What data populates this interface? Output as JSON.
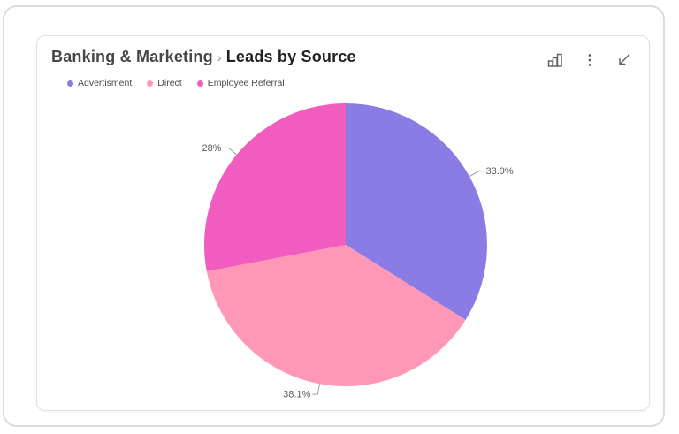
{
  "header": {
    "breadcrumb_primary": "Banking & Marketing",
    "breadcrumb_separator": "›",
    "breadcrumb_secondary": "Leads by Source"
  },
  "toolbar": {
    "icons": [
      "bar-chart-icon",
      "kebab-menu-icon",
      "collapse-arrow-icon"
    ]
  },
  "chart_data": {
    "type": "pie",
    "title": "Banking & Marketing › Leads by Source",
    "direction": "clockwise",
    "start_angle_deg": 0,
    "legend_position": "top-left",
    "slices": [
      {
        "name": "Advertisment",
        "value": 33.9,
        "label": "33.9%",
        "color": "#8A7CE4"
      },
      {
        "name": "Direct",
        "value": 38.1,
        "label": "38.1%",
        "color": "#FF98B7"
      },
      {
        "name": "Employee Referral",
        "value": 28,
        "label": "28%",
        "color": "#F05DBE"
      }
    ],
    "label_color": "#5c5c5c",
    "leader_line_color": "#9e9e9e"
  }
}
